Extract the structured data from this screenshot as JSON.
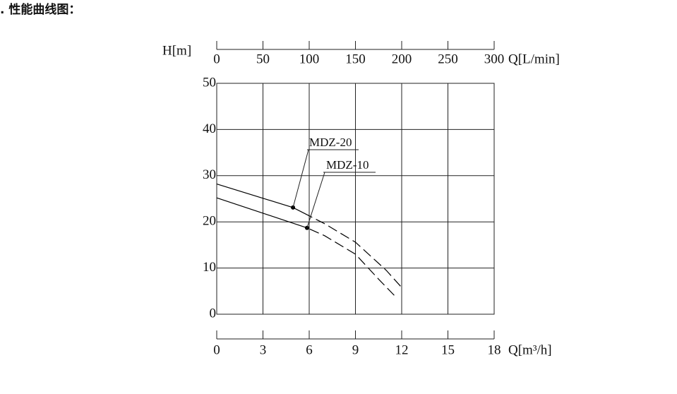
{
  "heading": ". 性能曲线图：",
  "chart_data": {
    "type": "line",
    "ylabel": "H[m]",
    "xlabel": "Q[m³/h]",
    "x2label": "Q[L/min]",
    "xlim": [
      0,
      18
    ],
    "xticks": [
      0,
      3,
      6,
      9,
      12,
      15,
      18
    ],
    "x2lim": [
      0,
      300
    ],
    "x2ticks": [
      0,
      50,
      100,
      150,
      200,
      250,
      300
    ],
    "ylim": [
      0,
      50
    ],
    "yticks": [
      0,
      10,
      20,
      30,
      40,
      50
    ],
    "grid": true,
    "series": [
      {
        "name": "MDZ-20",
        "color": "#000000",
        "x": [
          0,
          4.95,
          7,
          9,
          11,
          12.4
        ],
        "values": [
          28.2,
          23.1,
          19.6,
          15.6,
          9.5,
          4.3
        ]
      },
      {
        "name": "MDZ-10",
        "color": "#000000",
        "x": [
          0,
          5.86,
          7,
          9,
          10.5,
          11.6
        ],
        "values": [
          25.2,
          18.7,
          17.0,
          13.0,
          7.6,
          3.8
        ]
      }
    ]
  }
}
